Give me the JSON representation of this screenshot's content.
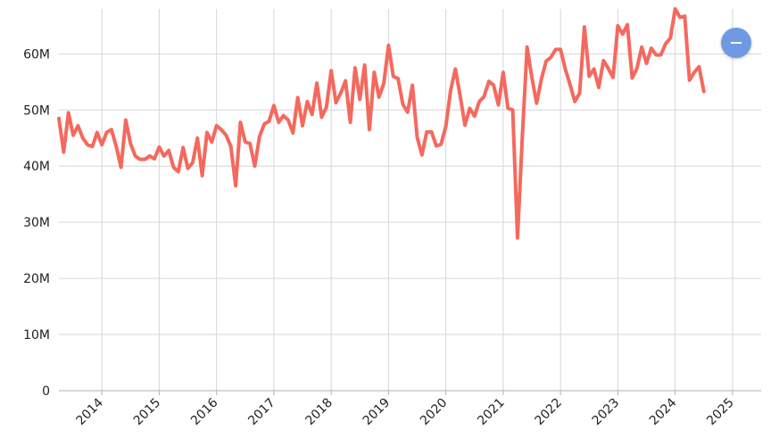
{
  "colors": {
    "series": "#f4695e",
    "button": "#6f9ae3"
  },
  "zoom_button": {
    "icon": "minus-icon"
  },
  "chart_data": {
    "type": "line",
    "title": "",
    "xlabel": "",
    "ylabel": "",
    "grid": true,
    "legend": "none",
    "x_start": "2013-04",
    "x_range": [
      "2013-04",
      "2025-07"
    ],
    "x_ticks": [
      "2014",
      "2015",
      "2016",
      "2017",
      "2018",
      "2019",
      "2020",
      "2021",
      "2022",
      "2023",
      "2024",
      "2025"
    ],
    "ylim": [
      0,
      68000000
    ],
    "y_ticks": [
      {
        "value": 0,
        "label": "0"
      },
      {
        "value": 10000000,
        "label": "10M"
      },
      {
        "value": 20000000,
        "label": "20M"
      },
      {
        "value": 30000000,
        "label": "30M"
      },
      {
        "value": 40000000,
        "label": "40M"
      },
      {
        "value": 50000000,
        "label": "50M"
      },
      {
        "value": 60000000,
        "label": "60M"
      }
    ],
    "series": [
      {
        "values": [
          48.5,
          42.5,
          49.5,
          45.5,
          47.2,
          45,
          43.8,
          43.5,
          46,
          43.8,
          46,
          46.5,
          43.5,
          39.8,
          48.2,
          44,
          41.8,
          41.2,
          41.2,
          41.8,
          41.3,
          43.4,
          41.8,
          42.8,
          39.8,
          39.0,
          43.3,
          39.6,
          40.6,
          45.0,
          38.3,
          46.0,
          44.3,
          47.2,
          46.5,
          45.5,
          43.5,
          36.5,
          47.8,
          44.3,
          44.0,
          40.0,
          45.3,
          47.5,
          48.0,
          50.8,
          47.8,
          49.0,
          48.2,
          45.9,
          52.2,
          47.2,
          51.5,
          49.2,
          54.8,
          48.7,
          50.5,
          57.0,
          51.3,
          53.0,
          55.2,
          47.8,
          57.5,
          51.9,
          58.0,
          46.5,
          56.7,
          52.3,
          54.7,
          61.5,
          56.0,
          55.6,
          51.0,
          49.6,
          54.4,
          45.1,
          42.0,
          46.1,
          46.1,
          43.6,
          43.9,
          47.1,
          53.5,
          57.3,
          52.5,
          47.3,
          50.3,
          48.9,
          51.5,
          52.4,
          55.1,
          54.4,
          50.9,
          56.7,
          50.3,
          50.0,
          27.2,
          45.1,
          61.2,
          55.8,
          51.2,
          55.5,
          58.7,
          59.4,
          60.8,
          60.8,
          57.3,
          54.5,
          51.5,
          53.0,
          64.8,
          56.0,
          57.3,
          54.0,
          58.8,
          57.4,
          55.8,
          65.0,
          63.5,
          65.2,
          55.7,
          57.4,
          61.2,
          58.3,
          61.0,
          59.8,
          59.8,
          61.8,
          62.8,
          68.0,
          66.5,
          66.7,
          55.3,
          56.7,
          57.7,
          53.3
        ],
        "unit": "M"
      }
    ]
  }
}
